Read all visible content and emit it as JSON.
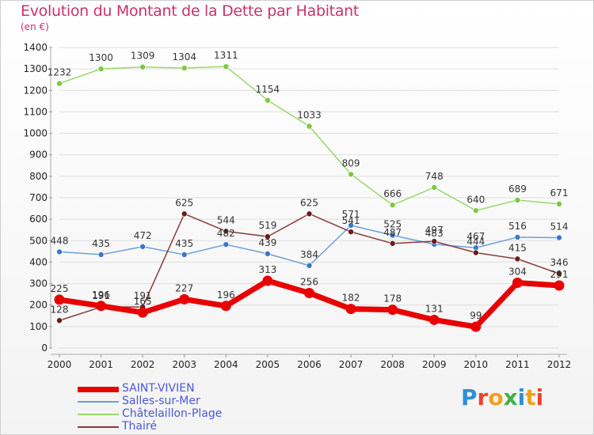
{
  "title": "Evolution du Montant de la Dette par Habitant",
  "unit": "(en €)",
  "logo": {
    "text": "Proxiti",
    "colors": [
      "#2e8fd8",
      "#e8452c",
      "#f0a020",
      "#44b04a",
      "#2e8fd8",
      "#f0a020",
      "#e8452c"
    ]
  },
  "chart_data": {
    "type": "line",
    "title": "Evolution du Montant de la Dette par Habitant",
    "ylabel": "(en €)",
    "xlabel": "",
    "x": [
      "2000",
      "2001",
      "2002",
      "2003",
      "2004",
      "2005",
      "2006",
      "2007",
      "2008",
      "2009",
      "2010",
      "2011",
      "2012"
    ],
    "ylim": [
      0,
      1400
    ],
    "yticks": [
      0,
      100,
      200,
      300,
      400,
      500,
      600,
      700,
      800,
      900,
      1000,
      1100,
      1200,
      1300,
      1400
    ],
    "grid": "horizontal",
    "legend_position": "bottom-left",
    "series": [
      {
        "name": "SAINT-VIVIEN",
        "color": "#e80000",
        "marker": "#e80000",
        "width": 7,
        "values": [
          225,
          196,
          165,
          227,
          196,
          313,
          256,
          182,
          178,
          131,
          99,
          304,
          291
        ],
        "labels": [
          "225",
          "196",
          "165",
          "227",
          "196",
          "313",
          "256",
          "182",
          "178",
          "131",
          "99",
          "304",
          "291"
        ]
      },
      {
        "name": "Salles-sur-Mer",
        "color": "#6aa0d8",
        "marker": "#3a78c8",
        "width": 1.5,
        "values": [
          448,
          435,
          472,
          435,
          482,
          439,
          384,
          571,
          525,
          483,
          467,
          516,
          514
        ],
        "labels": [
          "448",
          "435",
          "472",
          "435",
          "482",
          "439",
          "384",
          "571",
          "525",
          "483",
          "467",
          "516",
          "514"
        ]
      },
      {
        "name": "Châtelaillon-Plage",
        "color": "#9ad86a",
        "marker": "#7ec840",
        "width": 1.5,
        "values": [
          1232,
          1300,
          1309,
          1304,
          1311,
          1154,
          1033,
          809,
          666,
          748,
          640,
          689,
          671
        ],
        "labels": [
          "1232",
          "1300",
          "1309",
          "1304",
          "1311",
          "1154",
          "1033",
          "809",
          "666",
          "748",
          "640",
          "689",
          "671"
        ]
      },
      {
        "name": "Thairé",
        "color": "#8a3a3a",
        "marker": "#6a1a1a",
        "width": 1.5,
        "values": [
          128,
          191,
          191,
          625,
          544,
          519,
          625,
          541,
          487,
          497,
          444,
          415,
          346
        ],
        "labels": [
          "128",
          "191",
          "191",
          "625",
          "544",
          "519",
          "625",
          "541",
          "487",
          "497",
          "444",
          "415",
          "346"
        ]
      }
    ]
  }
}
